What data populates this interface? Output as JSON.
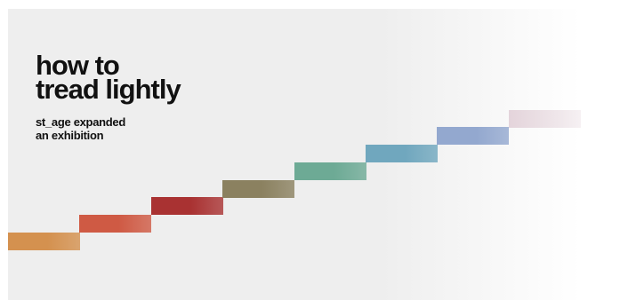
{
  "banner": {
    "title_lines": [
      "how to",
      "tread lightly"
    ],
    "subtitle_lines": [
      "st_age expanded",
      "an exhibition"
    ]
  },
  "steps": [
    {
      "color": "#d4914f"
    },
    {
      "color": "#cf5a44"
    },
    {
      "color": "#a93232"
    },
    {
      "color": "#8b8160"
    },
    {
      "color": "#6daa95"
    },
    {
      "color": "#70a7be"
    },
    {
      "color": "#93a8cf"
    },
    {
      "color": "#e4d4db"
    }
  ]
}
